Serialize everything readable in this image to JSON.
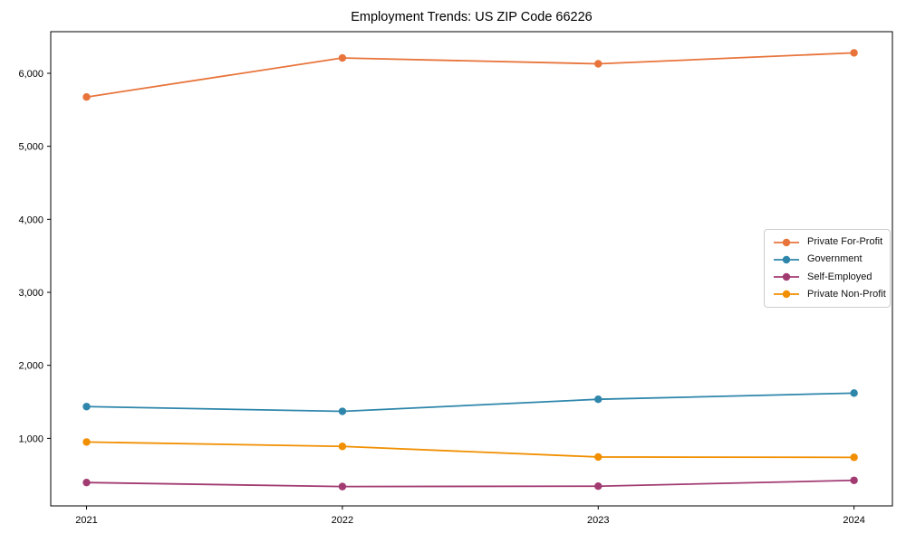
{
  "chart_data": {
    "type": "line",
    "title": "Employment Trends: US ZIP Code 66226",
    "x": [
      2021,
      2022,
      2023,
      2024
    ],
    "x_tick_labels": [
      "2021",
      "2022",
      "2023",
      "2024"
    ],
    "y_ticks": [
      1000,
      2000,
      3000,
      4000,
      5000,
      6000
    ],
    "y_tick_labels": [
      "1,000",
      "2,000",
      "3,000",
      "4,000",
      "5,000",
      "6,000"
    ],
    "xlim": [
      2020.86,
      2024.15
    ],
    "ylim": [
      75,
      6570
    ],
    "xlabel": "",
    "ylabel": "",
    "grid": false,
    "legend_position": "center right",
    "series": [
      {
        "name": "Private For-Profit",
        "color": "#E8743B",
        "values": [
          5675,
          6210,
          6130,
          6280
        ]
      },
      {
        "name": "Government",
        "color": "#2E86AB",
        "values": [
          1435,
          1370,
          1535,
          1620
        ]
      },
      {
        "name": "Self-Employed",
        "color": "#A23B72",
        "values": [
          395,
          340,
          345,
          425
        ]
      },
      {
        "name": "Private Non-Profit",
        "color": "#F18F01",
        "values": [
          950,
          890,
          745,
          740
        ]
      }
    ]
  }
}
